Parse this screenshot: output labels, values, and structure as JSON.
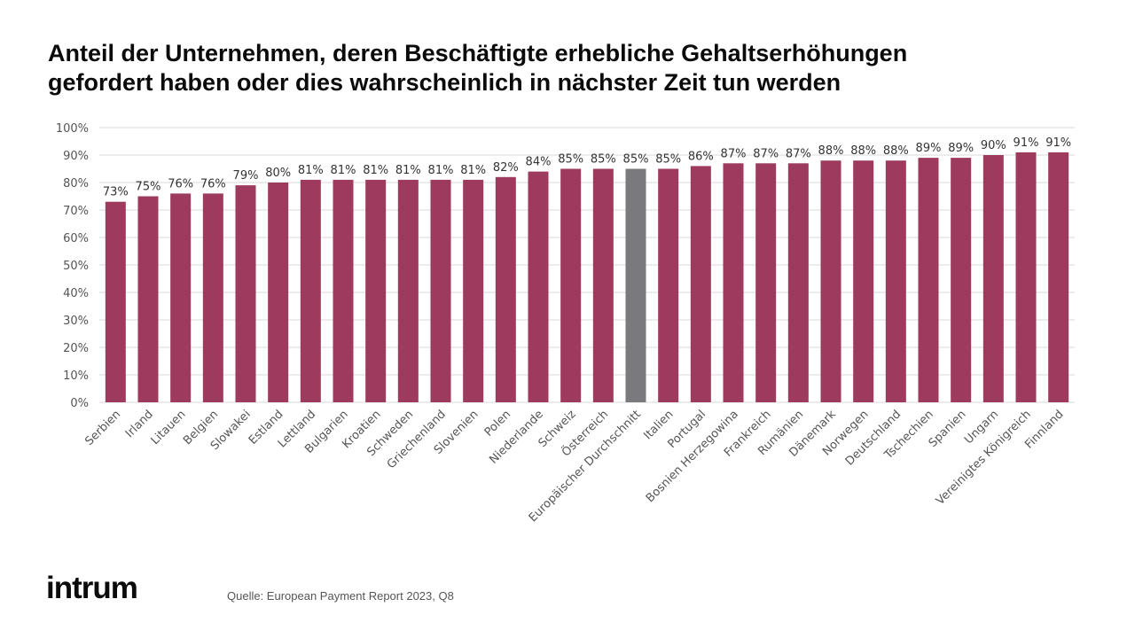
{
  "title_line1": "Anteil der Unternehmen, deren Beschäftigte erhebliche Gehaltserhöhungen",
  "title_line2": "gefordert haben oder dies wahrscheinlich in nächster Zeit tun werden",
  "logo_text": "intrum",
  "source_text": "Quelle: European Payment Report 2023, Q8",
  "colors": {
    "bar": "#9e3a5e",
    "highlight_bar": "#7a797e",
    "grid": "#d9d9d9",
    "axis_text": "#555555"
  },
  "chart_data": {
    "type": "bar",
    "title": "Anteil der Unternehmen, deren Beschäftigte erhebliche Gehaltserhöhungen gefordert haben oder dies wahrscheinlich in nächster Zeit tun werden",
    "categories": [
      "Serbien",
      "Irland",
      "Litauen",
      "Belgien",
      "Slowakei",
      "Estland",
      "Lettland",
      "Bulgarien",
      "Kroatien",
      "Schweden",
      "Griechenland",
      "Slovenien",
      "Polen",
      "Niederlande",
      "Schweiz",
      "Österreich",
      "Europäischer Durchschnitt",
      "Italien",
      "Portugal",
      "Bosnien Herzegowina",
      "Frankreich",
      "Rumänien",
      "Dänemark",
      "Norwegen",
      "Deutschland",
      "Tschechien",
      "Spanien",
      "Ungarn",
      "Vereinigtes Königreich",
      "Finnland"
    ],
    "values": [
      73,
      75,
      76,
      76,
      79,
      80,
      81,
      81,
      81,
      81,
      81,
      81,
      82,
      84,
      85,
      85,
      85,
      85,
      86,
      87,
      87,
      87,
      88,
      88,
      88,
      89,
      89,
      90,
      91,
      91
    ],
    "value_labels": [
      "73%",
      "75%",
      "76%",
      "76%",
      "79%",
      "80%",
      "81%",
      "81%",
      "81%",
      "81%",
      "81%",
      "81%",
      "82%",
      "84%",
      "85%",
      "85%",
      "85%",
      "85%",
      "86%",
      "87%",
      "87%",
      "87%",
      "88%",
      "88%",
      "88%",
      "89%",
      "89%",
      "90%",
      "91%",
      "91%"
    ],
    "highlight_category": "Europäischer Durchschnitt",
    "yticks": [
      "0%",
      "10%",
      "20%",
      "30%",
      "40%",
      "50%",
      "60%",
      "70%",
      "80%",
      "90%",
      "100%"
    ],
    "ylim": [
      0,
      100
    ],
    "xlabel": "",
    "ylabel": "",
    "grid": true
  }
}
